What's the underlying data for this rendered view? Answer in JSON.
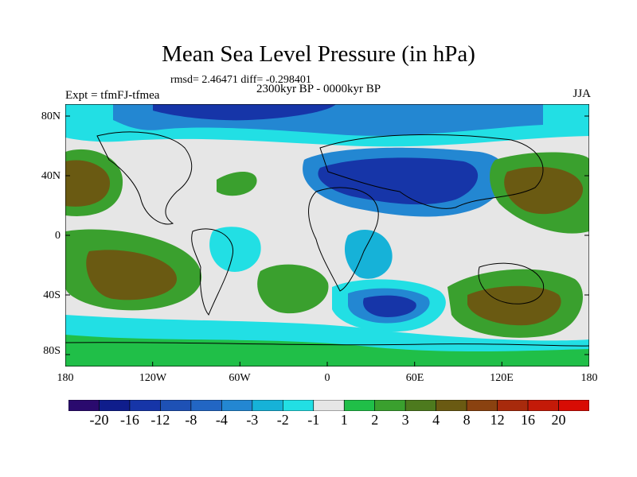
{
  "title": "Mean Sea Level Pressure (in hPa)",
  "stats": "rmsd= 2.46471 diff= -0.298401",
  "experiment": "Expt = tfmFJ-tfmea",
  "period": "2300kyr BP - 0000kyr BP",
  "season": "JJA",
  "lat_labels": [
    "80N",
    "40N",
    "0",
    "40S",
    "80S"
  ],
  "lon_labels": [
    "180",
    "120W",
    "60W",
    "0",
    "60E",
    "120E",
    "180"
  ],
  "colorbar": {
    "colors": [
      "#2a0a6e",
      "#0f1d8c",
      "#1635a8",
      "#1e51b5",
      "#2266c4",
      "#2387d2",
      "#16b2d8",
      "#22dfe4",
      "#e6e6e6",
      "#20bf48",
      "#3aa02e",
      "#4d7a1e",
      "#6a5a12",
      "#8a4210",
      "#a82a0c",
      "#c41a08",
      "#d80c04"
    ],
    "labels": [
      "-20",
      "-16",
      "-12",
      "-8",
      "-4",
      "-3",
      "-2",
      "-1",
      "1",
      "2",
      "3",
      "4",
      "8",
      "12",
      "16",
      "20"
    ]
  }
}
